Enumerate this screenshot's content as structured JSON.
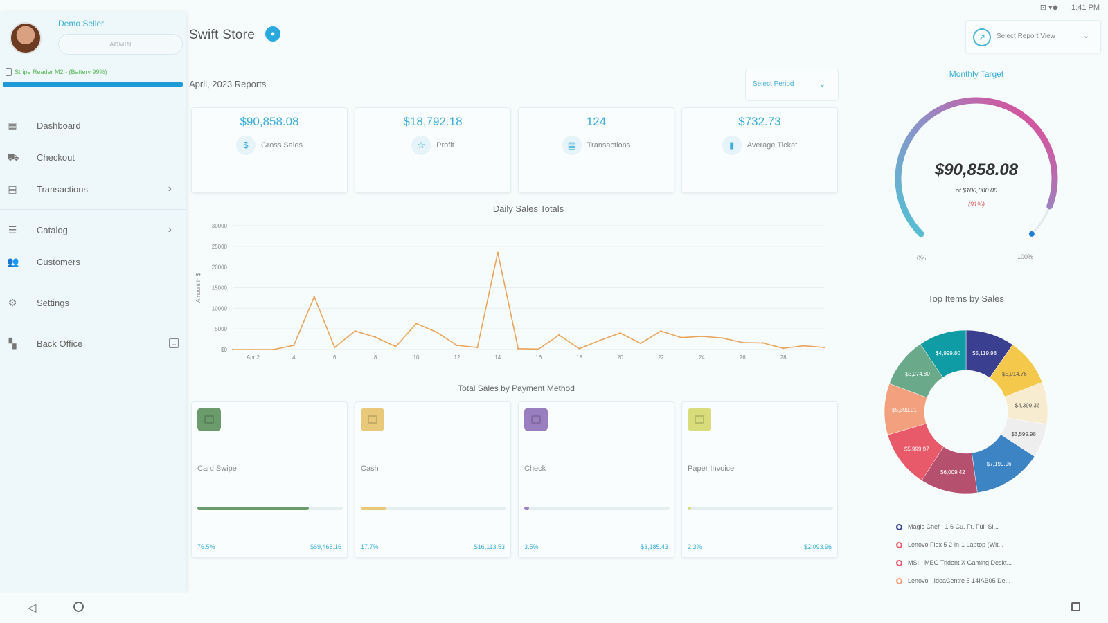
{
  "status": {
    "icons": "⊡ ▾◆",
    "time": "1:41 PM"
  },
  "sidebar": {
    "seller_name": "Demo Seller",
    "role": "ADMIN",
    "reader": "Stripe Reader M2 - (Battery 99%)",
    "items": [
      {
        "label": "Dashboard",
        "icon": "dashboard-icon"
      },
      {
        "label": "Checkout",
        "icon": "cart-icon"
      },
      {
        "label": "Transactions",
        "icon": "receipt-icon"
      },
      {
        "label": "Catalog",
        "icon": "catalog-icon"
      },
      {
        "label": "Customers",
        "icon": "users-icon"
      },
      {
        "label": "Settings",
        "icon": "gear-icon"
      },
      {
        "label": "Back Office",
        "icon": "grid-icon"
      }
    ]
  },
  "header": {
    "store_name": "Swift Store",
    "report_view_placeholder": "Select Report View",
    "reports_label": "April, 2023 Reports",
    "period_placeholder": "Select Period"
  },
  "kpis": [
    {
      "value": "$90,858.08",
      "label": "Gross Sales",
      "icon": "$"
    },
    {
      "value": "$18,792.18",
      "label": "Profit",
      "icon": "☆"
    },
    {
      "value": "124",
      "label": "Transactions",
      "icon": "▤"
    },
    {
      "value": "$732.73",
      "label": "Average Ticket",
      "icon": "▮"
    }
  ],
  "chart_data": [
    {
      "type": "line",
      "title": "Daily Sales Totals",
      "ylabel": "Amount in $",
      "xlabel": "",
      "ylim": [
        0,
        30000
      ],
      "y_ticks": [
        "$0",
        "5000",
        "10000",
        "15000",
        "20000",
        "25000",
        "30000"
      ],
      "x_tick_labels": [
        "Apr 2",
        "4",
        "6",
        "8",
        "10",
        "12",
        "14",
        "16",
        "18",
        "20",
        "22",
        "24",
        "26",
        "28"
      ],
      "x": [
        1,
        2,
        3,
        4,
        5,
        6,
        7,
        8,
        9,
        10,
        11,
        12,
        13,
        14,
        15,
        16,
        17,
        18,
        19,
        20,
        21,
        22,
        23,
        24,
        25,
        26,
        27,
        28,
        29,
        30
      ],
      "values": [
        0,
        0,
        0,
        1000,
        12800,
        500,
        4500,
        3000,
        700,
        6300,
        4200,
        1000,
        500,
        23500,
        200,
        100,
        3500,
        200,
        2200,
        4000,
        1500,
        4500,
        2900,
        3200,
        2800,
        1700,
        1600,
        300,
        900,
        500
      ],
      "color": "#e8a45a"
    },
    {
      "type": "pie",
      "title": "Top Items by Sales",
      "slices": [
        {
          "label": "$5,119.98",
          "value": 5119.98,
          "color": "#3a3f8f"
        },
        {
          "label": "$5,014.76",
          "value": 5014.76,
          "color": "#f4c84a"
        },
        {
          "label": "$4,399.36",
          "value": 4399.36,
          "color": "#f7ecd0"
        },
        {
          "label": "$3,599.98",
          "value": 3599.98,
          "color": "#eeeeee"
        },
        {
          "label": "$7,199.96",
          "value": 7199.96,
          "color": "#3d84c4"
        },
        {
          "label": "$6,009.42",
          "value": 6009.42,
          "color": "#b5506e"
        },
        {
          "label": "$5,999.97",
          "value": 5999.97,
          "color": "#e8596a"
        },
        {
          "label": "$5,399.91",
          "value": 5399.91,
          "color": "#f2a07e"
        },
        {
          "label": "$5,274.80",
          "value": 5274.8,
          "color": "#6aaa8a"
        },
        {
          "label": "$4,999.80",
          "value": 4999.8,
          "color": "#0f9ca4"
        }
      ]
    }
  ],
  "payment": {
    "title": "Total Sales by Payment Method",
    "methods": [
      {
        "label": "Card Swipe",
        "pct": "76.5%",
        "amount": "$69,465.16",
        "fraction": 0.765,
        "color": "#6b9a6b",
        "icon_color": "#6b9a6b"
      },
      {
        "label": "Cash",
        "pct": "17.7%",
        "amount": "$16,113.53",
        "fraction": 0.177,
        "color": "#e8c979",
        "icon_color": "#e8c979"
      },
      {
        "label": "Check",
        "pct": "3.5%",
        "amount": "$3,185.43",
        "fraction": 0.035,
        "color": "#9a7fc0",
        "icon_color": "#9a7fc0"
      },
      {
        "label": "Paper Invoice",
        "pct": "2.3%",
        "amount": "$2,093.96",
        "fraction": 0.023,
        "color": "#d8dc7a",
        "icon_color": "#d8dc7a"
      }
    ]
  },
  "target": {
    "title": "Monthly Target",
    "value": "$90,858.08",
    "of": "of $100,000.00",
    "pct": "(91%)",
    "fraction": 0.91,
    "min": "0%",
    "max": "100%"
  },
  "top_items": {
    "legend": [
      {
        "label": "Magic Chef - 1.6 Cu. Ft. Full-Si...",
        "color": "#3a3f8f"
      },
      {
        "label": "Lenovo Flex 5 2-in-1 Laptop (Wit...",
        "color": "#e8596a"
      },
      {
        "label": "MSI - MEG Trident X Gaming Deskt...",
        "color": "#e8596a"
      },
      {
        "label": "Lenovo - IdeaCentre 5 14IAB05 De...",
        "color": "#f2a07e"
      }
    ]
  }
}
